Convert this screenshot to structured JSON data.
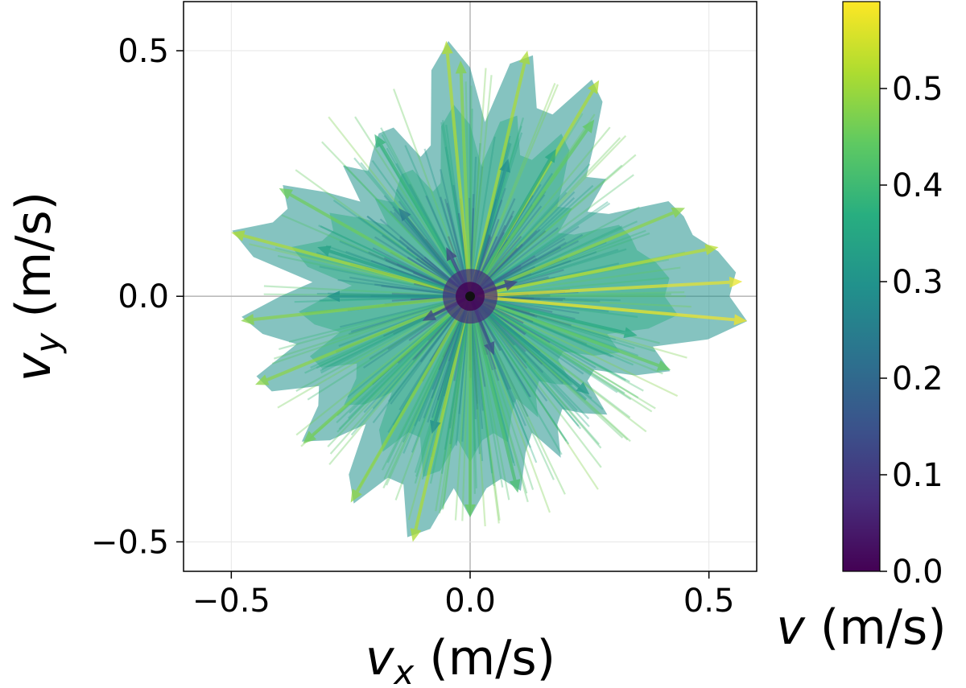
{
  "chart_data": {
    "type": "quiver",
    "xlabel": {
      "symbol": "v",
      "subscript": "x",
      "unit": " (m/s)"
    },
    "ylabel": {
      "symbol": "v",
      "subscript": "y",
      "unit": " (m/s)"
    },
    "xlim": [
      -0.6,
      0.6
    ],
    "ylim": [
      -0.56,
      0.6
    ],
    "xticks": [
      -0.5,
      0.0,
      0.5
    ],
    "xtick_labels": [
      "−0.5",
      "0.0",
      "0.5"
    ],
    "yticks": [
      -0.5,
      0.0,
      0.5
    ],
    "ytick_labels": [
      "−0.5",
      "0.0",
      "0.5"
    ],
    "grid": true,
    "origin": [
      0,
      0
    ],
    "colorbar": {
      "label": {
        "symbol": "v",
        "unit": " (m/s)"
      },
      "range": [
        0.0,
        0.59
      ],
      "ticks": [
        0.0,
        0.1,
        0.2,
        0.3,
        0.4,
        0.5
      ],
      "tick_labels": [
        "0.0",
        "0.1",
        "0.2",
        "0.3",
        "0.4",
        "0.5"
      ],
      "colormap": "viridis",
      "colormap_stops": [
        "#440154",
        "#472d7b",
        "#3b528b",
        "#2c728e",
        "#21918c",
        "#28ae80",
        "#5ec962",
        "#addc30",
        "#fde725"
      ]
    },
    "vectors": [
      [
        -0.05,
        0.52
      ],
      [
        0.27,
        0.44
      ],
      [
        0.26,
        0.36
      ],
      [
        -0.02,
        0.48
      ],
      [
        0.12,
        0.5
      ],
      [
        0.18,
        0.3
      ],
      [
        -0.2,
        0.33
      ],
      [
        -0.4,
        0.22
      ],
      [
        -0.5,
        0.13
      ],
      [
        -0.32,
        0.1
      ],
      [
        0.45,
        0.18
      ],
      [
        0.52,
        0.1
      ],
      [
        0.57,
        0.03
      ],
      [
        0.58,
        -0.05
      ],
      [
        0.42,
        -0.15
      ],
      [
        0.25,
        -0.2
      ],
      [
        0.1,
        -0.4
      ],
      [
        -0.12,
        -0.5
      ],
      [
        -0.25,
        -0.42
      ],
      [
        -0.35,
        -0.3
      ],
      [
        -0.45,
        -0.18
      ],
      [
        -0.48,
        -0.05
      ],
      [
        -0.3,
        0.0
      ],
      [
        0.35,
        -0.08
      ],
      [
        -0.08,
        -0.28
      ],
      [
        0.0,
        -0.45
      ],
      [
        0.08,
        0.28
      ],
      [
        -0.15,
        0.18
      ],
      [
        0.05,
        -0.12
      ],
      [
        -0.05,
        0.1
      ],
      [
        0.1,
        0.03
      ],
      [
        -0.1,
        -0.05
      ]
    ]
  }
}
